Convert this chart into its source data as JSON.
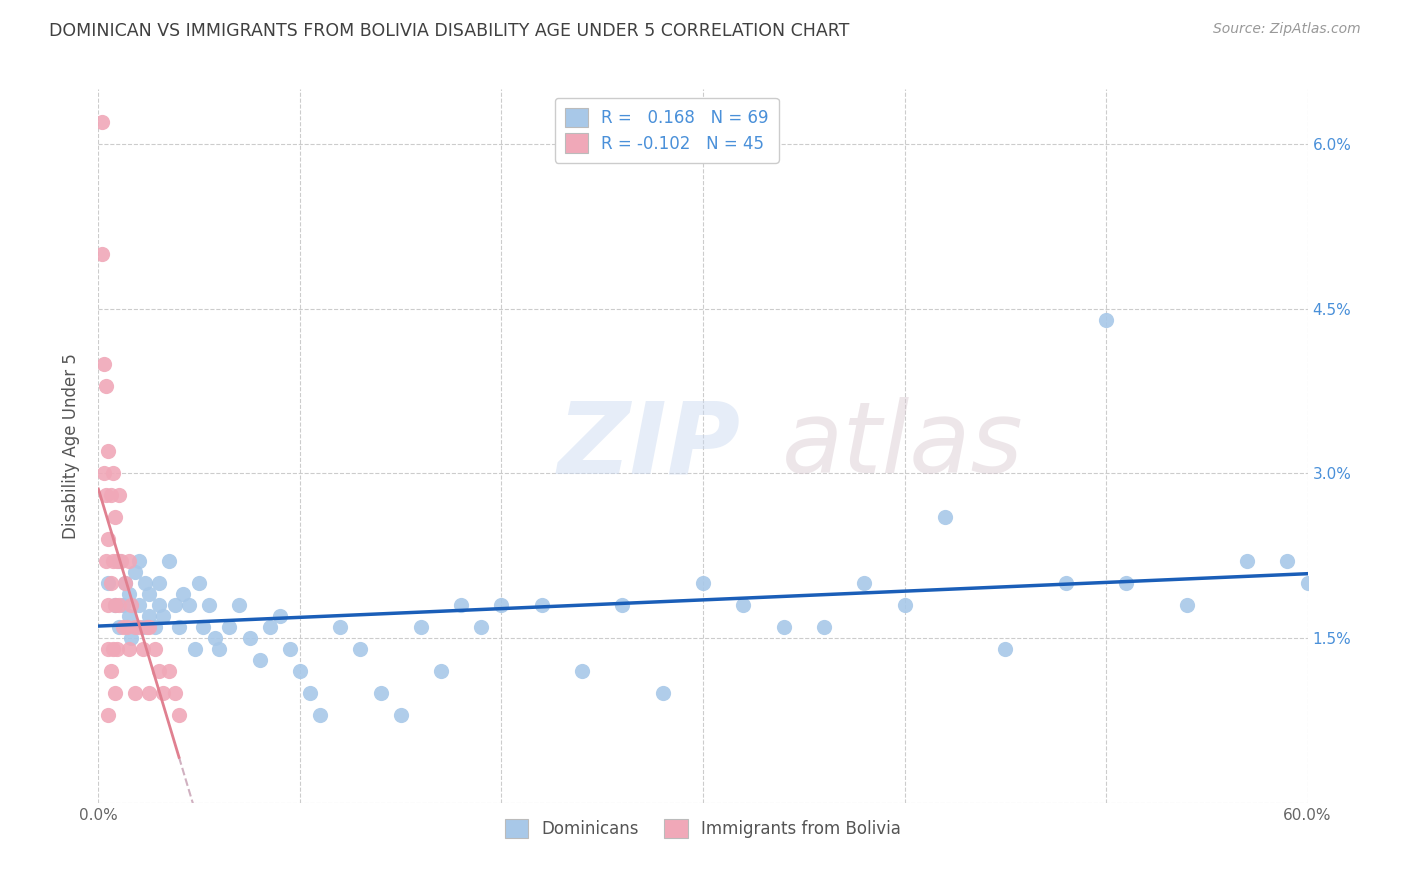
{
  "title": "DOMINICAN VS IMMIGRANTS FROM BOLIVIA DISABILITY AGE UNDER 5 CORRELATION CHART",
  "source": "Source: ZipAtlas.com",
  "ylabel": "Disability Age Under 5",
  "r1": 0.168,
  "n1": 69,
  "r2": -0.102,
  "n2": 45,
  "color1": "#a8c8e8",
  "color2": "#f0a8b8",
  "line1_color": "#1a5eb8",
  "line2_color": "#e08090",
  "line2_dash_color": "#d0b0c0",
  "xlim": [
    0.0,
    0.6
  ],
  "ylim": [
    0.0,
    0.065
  ],
  "background_color": "#ffffff",
  "grid_color": "#cccccc",
  "title_color": "#404040",
  "axis_label_color": "#555555",
  "right_tick_color": "#4a90d9",
  "legend_label1": "Dominicans",
  "legend_label2": "Immigrants from Bolivia",
  "dominicans_x": [
    0.005,
    0.008,
    0.01,
    0.01,
    0.012,
    0.013,
    0.015,
    0.015,
    0.016,
    0.018,
    0.02,
    0.02,
    0.022,
    0.023,
    0.025,
    0.025,
    0.028,
    0.03,
    0.03,
    0.032,
    0.035,
    0.038,
    0.04,
    0.042,
    0.045,
    0.048,
    0.05,
    0.052,
    0.055,
    0.058,
    0.06,
    0.065,
    0.07,
    0.075,
    0.08,
    0.085,
    0.09,
    0.095,
    0.1,
    0.105,
    0.11,
    0.12,
    0.13,
    0.14,
    0.15,
    0.16,
    0.17,
    0.18,
    0.19,
    0.2,
    0.22,
    0.24,
    0.26,
    0.28,
    0.3,
    0.32,
    0.34,
    0.36,
    0.38,
    0.4,
    0.42,
    0.45,
    0.48,
    0.51,
    0.54,
    0.57,
    0.59,
    0.6,
    0.5
  ],
  "dominicans_y": [
    0.02,
    0.018,
    0.022,
    0.016,
    0.018,
    0.02,
    0.017,
    0.019,
    0.015,
    0.021,
    0.018,
    0.022,
    0.016,
    0.02,
    0.017,
    0.019,
    0.016,
    0.018,
    0.02,
    0.017,
    0.022,
    0.018,
    0.016,
    0.019,
    0.018,
    0.014,
    0.02,
    0.016,
    0.018,
    0.015,
    0.014,
    0.016,
    0.018,
    0.015,
    0.013,
    0.016,
    0.017,
    0.014,
    0.012,
    0.01,
    0.008,
    0.016,
    0.014,
    0.01,
    0.008,
    0.016,
    0.012,
    0.018,
    0.016,
    0.018,
    0.018,
    0.012,
    0.018,
    0.01,
    0.02,
    0.018,
    0.016,
    0.016,
    0.02,
    0.018,
    0.026,
    0.014,
    0.02,
    0.02,
    0.018,
    0.022,
    0.022,
    0.02,
    0.044
  ],
  "bolivia_x": [
    0.002,
    0.002,
    0.003,
    0.003,
    0.004,
    0.004,
    0.004,
    0.005,
    0.005,
    0.005,
    0.005,
    0.005,
    0.006,
    0.006,
    0.006,
    0.007,
    0.007,
    0.007,
    0.008,
    0.008,
    0.008,
    0.009,
    0.009,
    0.01,
    0.01,
    0.011,
    0.012,
    0.013,
    0.014,
    0.015,
    0.015,
    0.016,
    0.018,
    0.018,
    0.02,
    0.022,
    0.024,
    0.025,
    0.025,
    0.028,
    0.03,
    0.032,
    0.035,
    0.038,
    0.04
  ],
  "bolivia_y": [
    0.062,
    0.05,
    0.04,
    0.03,
    0.038,
    0.028,
    0.022,
    0.032,
    0.024,
    0.018,
    0.014,
    0.008,
    0.028,
    0.02,
    0.012,
    0.03,
    0.022,
    0.014,
    0.026,
    0.018,
    0.01,
    0.022,
    0.014,
    0.028,
    0.018,
    0.022,
    0.016,
    0.02,
    0.016,
    0.022,
    0.014,
    0.018,
    0.016,
    0.01,
    0.016,
    0.014,
    0.016,
    0.016,
    0.01,
    0.014,
    0.012,
    0.01,
    0.012,
    0.01,
    0.008
  ],
  "watermark_zip": "ZIP",
  "watermark_atlas": "atlas"
}
